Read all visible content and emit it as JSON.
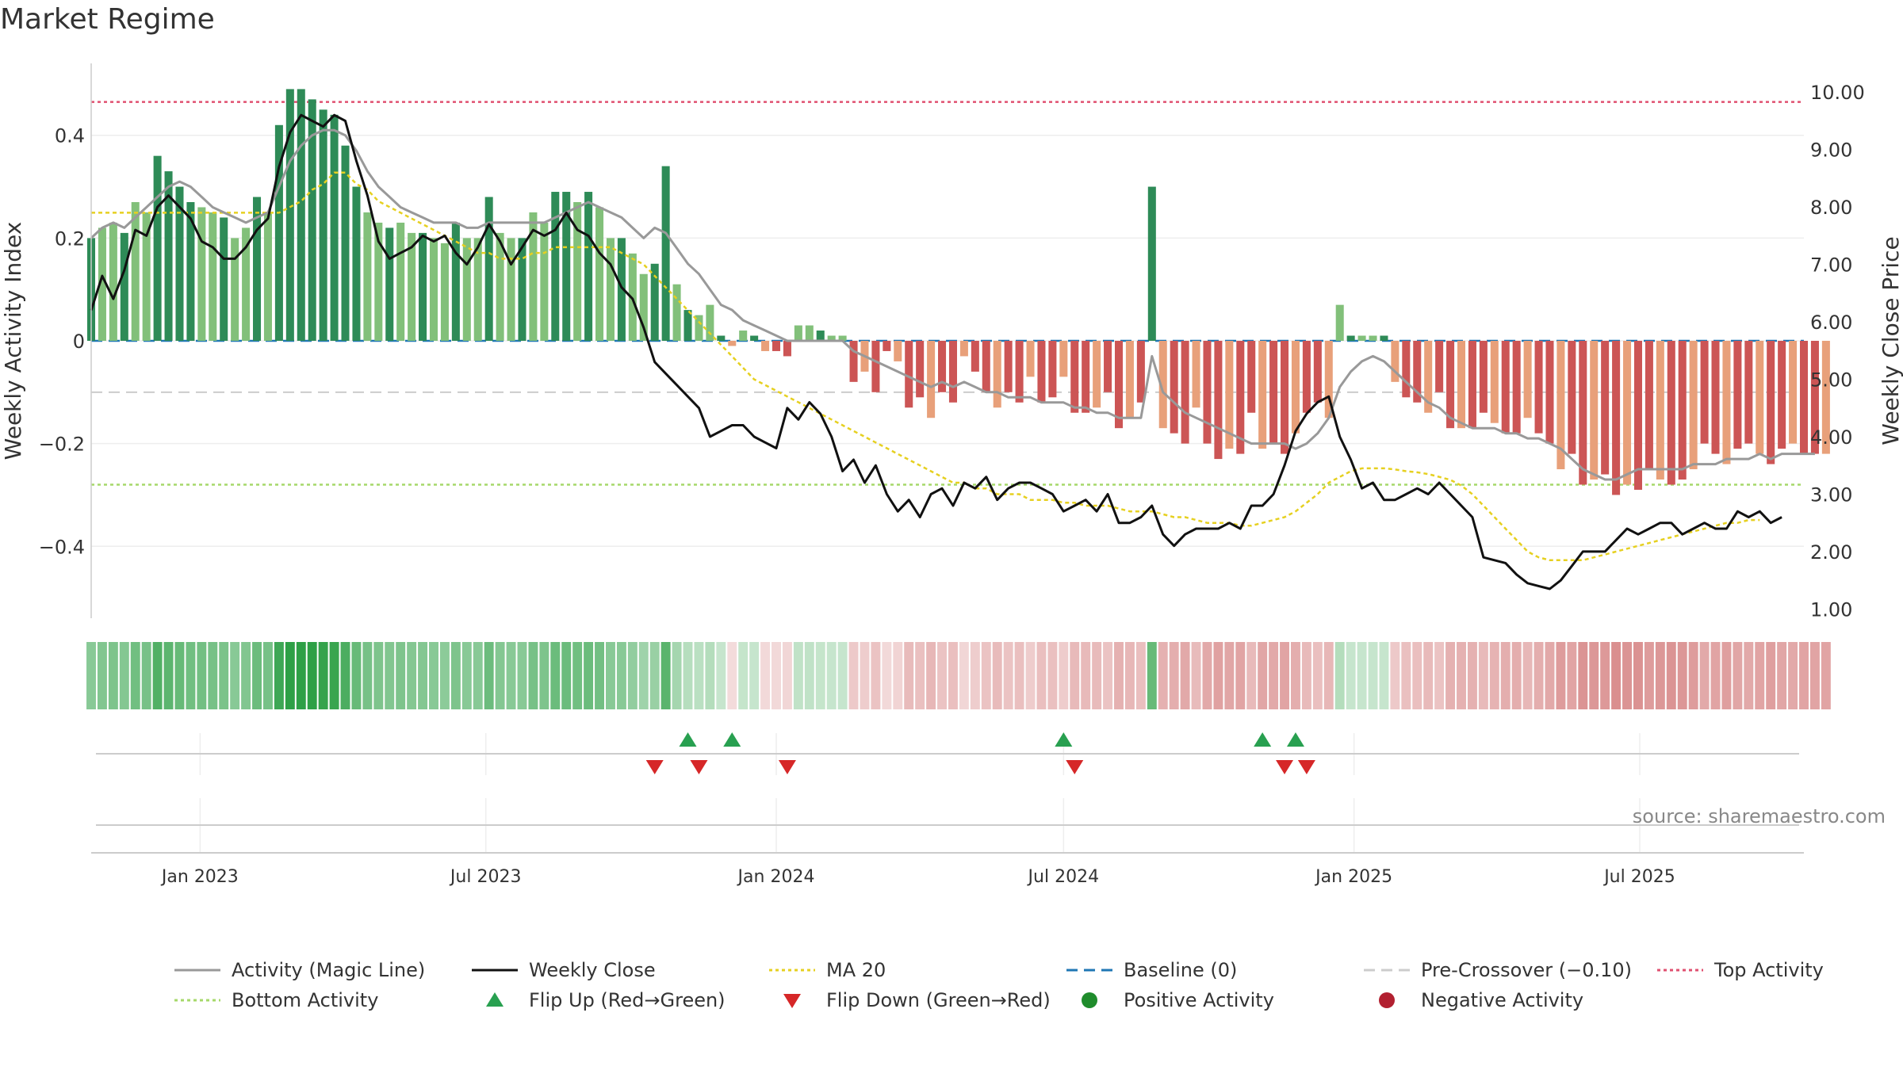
{
  "title": "Market Regime",
  "source_note": "source: sharemaestro.com",
  "chart_data": {
    "type": "bar",
    "title": "Market Regime",
    "xlabel": "",
    "left_axis": {
      "label": "Weekly Activity Index",
      "ylim": [
        -0.54,
        0.54
      ],
      "ticks": [
        0.4,
        0.2,
        0,
        -0.2,
        -0.4
      ],
      "tick_labels": [
        "0.4",
        "0.2",
        "0",
        "−0.2",
        "−0.4"
      ]
    },
    "right_axis": {
      "label": "Weekly Close Price",
      "ylim": [
        0.84,
        10.5
      ],
      "ticks": [
        10,
        9,
        8,
        7,
        6,
        5,
        4,
        3,
        2,
        1
      ],
      "tick_labels": [
        "10.00",
        "9.00",
        "8.00",
        "7.00",
        "6.00",
        "5.00",
        "4.00",
        "3.00",
        "2.00",
        "1.00"
      ]
    },
    "x_axis": {
      "start": "2022-10-24",
      "end": "2025-10-13",
      "ticks": [
        "2023-01-01",
        "2023-07-01",
        "2024-01-01",
        "2024-07-01",
        "2025-01-01",
        "2025-07-01"
      ],
      "tick_labels": [
        "Jan 2023",
        "Jul 2023",
        "Jan 2024",
        "Jul 2024",
        "Jan 2025",
        "Jul 2025"
      ]
    },
    "reference_lines": {
      "top_activity": 0.465,
      "bottom_activity": -0.28,
      "pre_crossover": -0.1,
      "baseline": 0
    },
    "first_week": "2022-10-24",
    "activity_values": [
      0.2,
      0.22,
      0.23,
      0.21,
      0.27,
      0.25,
      0.36,
      0.33,
      0.3,
      0.27,
      0.26,
      0.25,
      0.24,
      0.2,
      0.22,
      0.28,
      0.25,
      0.42,
      0.49,
      0.49,
      0.47,
      0.45,
      0.44,
      0.38,
      0.3,
      0.25,
      0.23,
      0.22,
      0.23,
      0.21,
      0.21,
      0.2,
      0.19,
      0.23,
      0.2,
      0.2,
      0.28,
      0.21,
      0.2,
      0.2,
      0.25,
      0.23,
      0.29,
      0.29,
      0.27,
      0.29,
      0.26,
      0.2,
      0.2,
      0.17,
      0.13,
      0.15,
      0.34,
      0.11,
      0.06,
      0.05,
      0.07,
      0.01,
      -0.01,
      0.02,
      0.01,
      -0.02,
      -0.02,
      -0.03,
      0.03,
      0.03,
      0.02,
      0.01,
      0.01,
      -0.08,
      -0.06,
      -0.1,
      -0.02,
      -0.04,
      -0.13,
      -0.11,
      -0.15,
      -0.1,
      -0.12,
      -0.03,
      -0.06,
      -0.1,
      -0.13,
      -0.1,
      -0.12,
      -0.07,
      -0.12,
      -0.11,
      -0.07,
      -0.14,
      -0.14,
      -0.13,
      -0.1,
      -0.17,
      -0.15,
      -0.12,
      0.3,
      -0.17,
      -0.18,
      -0.2,
      -0.13,
      -0.2,
      -0.23,
      -0.21,
      -0.22,
      -0.14,
      -0.21,
      -0.2,
      -0.22,
      -0.18,
      -0.14,
      -0.12,
      -0.15,
      0.07,
      0.01,
      0.01,
      0.01,
      0.01,
      -0.08,
      -0.11,
      -0.12,
      -0.14,
      -0.1,
      -0.17,
      -0.17,
      -0.17,
      -0.14,
      -0.16,
      -0.18,
      -0.18,
      -0.15,
      -0.18,
      -0.2,
      -0.25,
      -0.22,
      -0.28,
      -0.27,
      -0.26,
      -0.3,
      -0.28,
      -0.29,
      -0.25,
      -0.27,
      -0.28,
      -0.27,
      -0.25,
      -0.2,
      -0.22,
      -0.24,
      -0.21,
      -0.2,
      -0.22,
      -0.24,
      -0.21,
      -0.2,
      -0.22,
      -0.22,
      -0.22
    ],
    "weekly_close": [
      6.2,
      6.8,
      6.4,
      6.9,
      7.6,
      7.5,
      8.0,
      8.2,
      8.0,
      7.8,
      7.4,
      7.3,
      7.1,
      7.1,
      7.3,
      7.6,
      7.8,
      8.7,
      9.3,
      9.6,
      9.5,
      9.4,
      9.6,
      9.5,
      8.8,
      8.2,
      7.4,
      7.1,
      7.2,
      7.3,
      7.5,
      7.4,
      7.5,
      7.2,
      7.0,
      7.3,
      7.7,
      7.4,
      7.0,
      7.3,
      7.6,
      7.5,
      7.6,
      7.9,
      7.6,
      7.5,
      7.2,
      7.0,
      6.6,
      6.4,
      5.9,
      5.3,
      5.1,
      4.9,
      4.7,
      4.5,
      4.0,
      4.1,
      4.2,
      4.2,
      4.0,
      3.9,
      3.8,
      4.5,
      4.3,
      4.6,
      4.4,
      4.0,
      3.4,
      3.6,
      3.2,
      3.5,
      3.0,
      2.7,
      2.9,
      2.6,
      3.0,
      3.1,
      2.8,
      3.2,
      3.1,
      3.3,
      2.9,
      3.1,
      3.2,
      3.2,
      3.1,
      3.0,
      2.7,
      2.8,
      2.9,
      2.7,
      3.0,
      2.5,
      2.5,
      2.6,
      2.8,
      2.3,
      2.1,
      2.3,
      2.4,
      2.4,
      2.4,
      2.5,
      2.4,
      2.8,
      2.8,
      3.0,
      3.5,
      4.1,
      4.4,
      4.6,
      4.7,
      4.0,
      3.6,
      3.1,
      3.2,
      2.9,
      2.9,
      3.0,
      3.1,
      3.0,
      3.2,
      3.0,
      2.8,
      2.6,
      1.9,
      1.85,
      1.8,
      1.6,
      1.45,
      1.4,
      1.35,
      1.5,
      1.75,
      2.0,
      2.0,
      2.0,
      2.2,
      2.4,
      2.3,
      2.4,
      2.5,
      2.5,
      2.3,
      2.4,
      2.5,
      2.4,
      2.4,
      2.7,
      2.6,
      2.7,
      2.5,
      2.6
    ],
    "magic_line": [
      0.2,
      0.22,
      0.23,
      0.22,
      0.24,
      0.26,
      0.28,
      0.3,
      0.31,
      0.3,
      0.28,
      0.26,
      0.25,
      0.24,
      0.23,
      0.24,
      0.25,
      0.3,
      0.35,
      0.38,
      0.4,
      0.41,
      0.41,
      0.4,
      0.37,
      0.33,
      0.3,
      0.28,
      0.26,
      0.25,
      0.24,
      0.23,
      0.23,
      0.23,
      0.22,
      0.22,
      0.23,
      0.23,
      0.23,
      0.23,
      0.23,
      0.23,
      0.24,
      0.25,
      0.26,
      0.27,
      0.26,
      0.25,
      0.24,
      0.22,
      0.2,
      0.22,
      0.21,
      0.18,
      0.15,
      0.13,
      0.1,
      0.07,
      0.06,
      0.04,
      0.03,
      0.02,
      0.01,
      0.0,
      0.0,
      0.0,
      0.0,
      0.0,
      0.0,
      -0.02,
      -0.03,
      -0.04,
      -0.05,
      -0.06,
      -0.07,
      -0.08,
      -0.09,
      -0.08,
      -0.09,
      -0.08,
      -0.09,
      -0.1,
      -0.1,
      -0.11,
      -0.11,
      -0.11,
      -0.12,
      -0.12,
      -0.12,
      -0.13,
      -0.13,
      -0.14,
      -0.14,
      -0.15,
      -0.15,
      -0.15,
      -0.03,
      -0.1,
      -0.12,
      -0.14,
      -0.15,
      -0.16,
      -0.17,
      -0.18,
      -0.19,
      -0.2,
      -0.2,
      -0.2,
      -0.2,
      -0.21,
      -0.2,
      -0.18,
      -0.15,
      -0.09,
      -0.06,
      -0.04,
      -0.03,
      -0.04,
      -0.06,
      -0.08,
      -0.1,
      -0.12,
      -0.13,
      -0.15,
      -0.16,
      -0.17,
      -0.17,
      -0.17,
      -0.18,
      -0.18,
      -0.19,
      -0.19,
      -0.2,
      -0.21,
      -0.23,
      -0.25,
      -0.26,
      -0.27,
      -0.27,
      -0.26,
      -0.25,
      -0.25,
      -0.25,
      -0.25,
      -0.25,
      -0.24,
      -0.24,
      -0.24,
      -0.23,
      -0.23,
      -0.23,
      -0.22,
      -0.23,
      -0.22,
      -0.22,
      -0.22,
      -0.22
    ],
    "ma20_close": [
      7.9,
      7.9,
      7.9,
      7.9,
      7.9,
      7.9,
      7.9,
      7.9,
      7.9,
      7.9,
      7.9,
      7.9,
      7.9,
      7.9,
      7.9,
      7.9,
      7.9,
      7.9,
      8.0,
      8.1,
      8.3,
      8.4,
      8.6,
      8.6,
      8.4,
      8.3,
      8.1,
      8.0,
      7.9,
      7.8,
      7.7,
      7.6,
      7.5,
      7.4,
      7.3,
      7.2,
      7.2,
      7.1,
      7.1,
      7.1,
      7.2,
      7.2,
      7.3,
      7.3,
      7.3,
      7.3,
      7.3,
      7.3,
      7.2,
      7.1,
      7.0,
      6.8,
      6.6,
      6.4,
      6.2,
      6.0,
      5.8,
      5.6,
      5.4,
      5.2,
      5.0,
      4.9,
      4.8,
      4.7,
      4.6,
      4.5,
      4.4,
      4.3,
      4.2,
      4.1,
      4.0,
      3.9,
      3.8,
      3.7,
      3.6,
      3.5,
      3.4,
      3.3,
      3.2,
      3.2,
      3.1,
      3.1,
      3.0,
      3.0,
      3.0,
      2.9,
      2.9,
      2.9,
      2.85,
      2.85,
      2.8,
      2.8,
      2.8,
      2.75,
      2.7,
      2.7,
      2.7,
      2.65,
      2.6,
      2.6,
      2.55,
      2.5,
      2.5,
      2.5,
      2.45,
      2.45,
      2.5,
      2.55,
      2.6,
      2.7,
      2.85,
      3.0,
      3.2,
      3.3,
      3.4,
      3.45,
      3.45,
      3.45,
      3.43,
      3.4,
      3.38,
      3.35,
      3.3,
      3.25,
      3.15,
      3.0,
      2.8,
      2.6,
      2.4,
      2.2,
      2.0,
      1.9,
      1.85,
      1.85,
      1.85,
      1.85,
      1.9,
      1.95,
      2.0,
      2.05,
      2.1,
      2.15,
      2.2,
      2.25,
      2.3,
      2.35,
      2.4,
      2.45,
      2.5,
      2.5,
      2.55,
      2.55
    ],
    "flip_up_dates": [
      "2023-11-06",
      "2023-12-04",
      "2024-07-01",
      "2024-11-04",
      "2024-11-25"
    ],
    "flip_down_dates": [
      "2023-10-16",
      "2023-11-13",
      "2024-01-08",
      "2024-07-08",
      "2024-11-18",
      "2024-12-02"
    ],
    "legend": [
      {
        "label": "Activity (Magic Line)",
        "kind": "line",
        "color": "#999999",
        "dash": ""
      },
      {
        "label": "Weekly Close",
        "kind": "line",
        "color": "#111111",
        "dash": ""
      },
      {
        "label": "MA 20",
        "kind": "line",
        "color": "#e6d020",
        "dash": "4,4"
      },
      {
        "label": "Baseline (0)",
        "kind": "line",
        "color": "#1f77b4",
        "dash": "14,8"
      },
      {
        "label": "Pre-Crossover (−0.10)",
        "kind": "line",
        "color": "#cccccc",
        "dash": "14,8"
      },
      {
        "label": "Top Activity",
        "kind": "line",
        "color": "#e05070",
        "dash": "4,4"
      },
      {
        "label": "Bottom Activity",
        "kind": "line",
        "color": "#a6d86a",
        "dash": "4,4"
      },
      {
        "label": "Flip Up (Red→Green)",
        "kind": "tri-up",
        "color": "#28a050",
        "dash": ""
      },
      {
        "label": "Flip Down (Green→Red)",
        "kind": "tri-down",
        "color": "#d62728",
        "dash": ""
      },
      {
        "label": "Positive Activity",
        "kind": "dot",
        "color": "#1f8c2c",
        "dash": ""
      },
      {
        "label": "Negative Activity",
        "kind": "dot",
        "color": "#b22030",
        "dash": ""
      }
    ]
  }
}
